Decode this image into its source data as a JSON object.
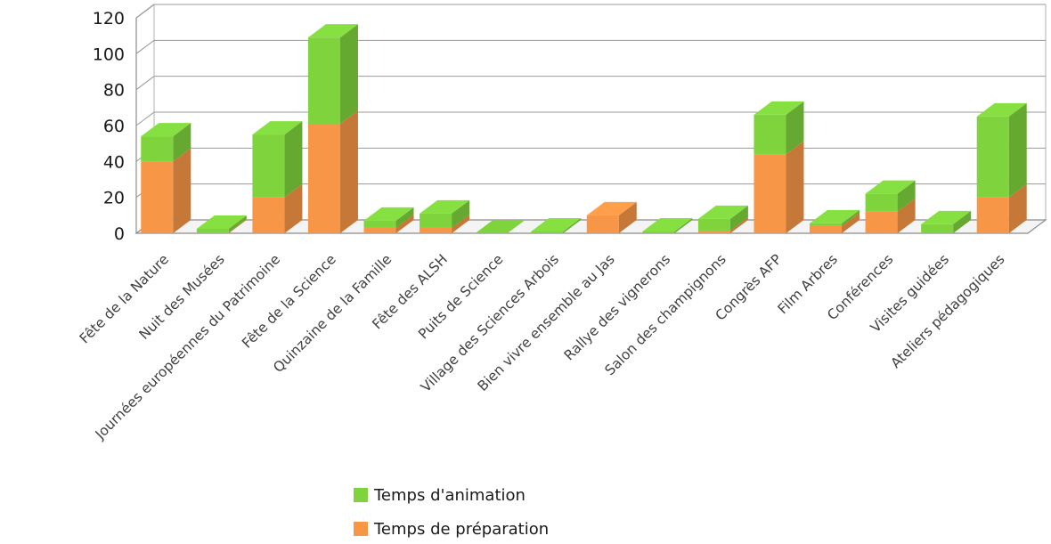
{
  "chart_data": {
    "type": "bar",
    "stacked": true,
    "three_d": true,
    "categories": [
      "Fête de la Nature",
      "Nuit des Musées",
      "Journées européennes du Patrimoine",
      "Fête de la Science",
      "Quinzaine de la Famille",
      "Fête des ALSH",
      "Puits de Science",
      "Village des Sciences Arbois",
      "Bien vivre ensemble au Jas",
      "Rallye des vignerons",
      "Salon des champignons",
      "Congrès AFP",
      "Film Arbres",
      "Conférences",
      "Visites guidées",
      "Ateliers pédagogiques"
    ],
    "series": [
      {
        "name": "Temps de préparation",
        "color": "#f79646",
        "values": [
          40,
          0.5,
          20,
          61,
          3,
          3,
          0,
          0,
          10,
          0,
          1.5,
          44,
          4,
          12,
          0,
          20
        ]
      },
      {
        "name": "Temps d'animation",
        "color": "#7fd33d",
        "values": [
          14,
          2,
          35,
          48,
          4,
          8,
          0,
          1,
          0,
          1,
          6.5,
          22,
          1.5,
          10,
          5,
          45
        ]
      }
    ],
    "ylim": [
      0,
      120
    ],
    "yticks": [
      0,
      20,
      40,
      60,
      80,
      100,
      120
    ],
    "grid": true,
    "legend": {
      "position": "bottom",
      "order": [
        "Temps d'animation",
        "Temps de préparation"
      ]
    }
  }
}
